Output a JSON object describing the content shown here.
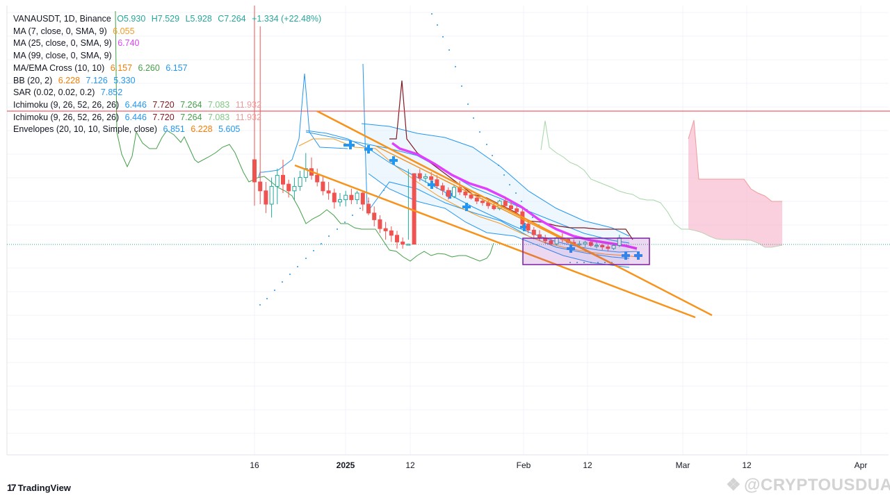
{
  "legend": {
    "symbol": "VANAUSDT, 1D, Binance",
    "open": "O5.930",
    "high": "H7.529",
    "low": "L5.928",
    "close": "C7.264",
    "change": "+1.334 (+22.48%)",
    "ma7": {
      "label": "MA (7, close, 0, SMA, 9)",
      "value": "6.055",
      "color": "#f59b23"
    },
    "ma25": {
      "label": "MA (25, close, 0, SMA, 9)",
      "value": "6.740",
      "color": "#e040fb"
    },
    "ma99": {
      "label": "MA (99, close, 0, SMA, 9)"
    },
    "cross": {
      "label": "MA/EMA Cross (10, 10)",
      "v1": "6.157",
      "v2": "6.260",
      "v3": "6.157"
    },
    "bb": {
      "label": "BB (20, 2)",
      "v1": "6.228",
      "v2": "7.126",
      "v3": "5.330"
    },
    "sar": {
      "label": "SAR (0.02, 0.02, 0.2)",
      "v1": "7.852"
    },
    "ichimoku1": {
      "label": "Ichimoku (9, 26, 52, 26, 26)",
      "v1": "6.446",
      "v2": "7.720",
      "v3": "7.264",
      "v4": "7.083",
      "v5": "11.932"
    },
    "ichimoku2": {
      "label": "Ichimoku (9, 26, 52, 26, 26)",
      "v1": "6.446",
      "v2": "7.720",
      "v3": "7.264",
      "v4": "7.083",
      "v5": "11.932"
    },
    "env": {
      "label": "Envelopes (20, 10, 10, Simple, close)",
      "v1": "6.851",
      "v2": "6.228",
      "v3": "5.605"
    }
  },
  "colors": {
    "up": "#26a69a",
    "down": "#ef5350",
    "ma7": "#f59b23",
    "ma25": "#e040fb",
    "blue": "#2196f3",
    "kijun": "#801922",
    "lagging": "#43a047",
    "trendline": "#f7931a",
    "price_line": "#f23645"
  },
  "xaxis": {
    "ticks": [
      "16",
      "2025",
      "12",
      "Feb",
      "12",
      "Mar",
      "12",
      "Apr"
    ]
  },
  "branding": {
    "logo": "TradingView",
    "watermark": "@CRYPTOUSDUA"
  },
  "chart_data": {
    "type": "candlestick",
    "symbol": "VANAUSDT",
    "interval": "1D",
    "exchange": "Binance",
    "last_bar": {
      "open": 5.93,
      "high": 7.529,
      "low": 5.928,
      "close": 7.264,
      "change": 1.334,
      "change_pct": 22.48
    },
    "x_tick_labels": [
      "16",
      "2025",
      "12",
      "Feb",
      "12",
      "Mar",
      "12",
      "Apr"
    ],
    "candles": [
      {
        "date": "2024-12-16",
        "o": 20.0,
        "h": 27.0,
        "l": 13.5,
        "c": 19.0
      },
      {
        "date": "2024-12-17",
        "o": 19.0,
        "h": 26.0,
        "l": 18.0,
        "c": 18.6
      },
      {
        "date": "2024-12-18",
        "o": 18.6,
        "h": 19.0,
        "l": 17.6,
        "c": 18.0
      },
      {
        "date": "2024-12-19",
        "o": 18.0,
        "h": 19.2,
        "l": 17.4,
        "c": 18.8
      },
      {
        "date": "2024-12-20",
        "o": 18.8,
        "h": 19.6,
        "l": 18.0,
        "c": 19.3
      },
      {
        "date": "2024-12-21",
        "o": 19.3,
        "h": 20.0,
        "l": 18.5,
        "c": 18.9
      },
      {
        "date": "2024-12-22",
        "o": 18.9,
        "h": 19.1,
        "l": 18.3,
        "c": 18.6
      },
      {
        "date": "2024-12-23",
        "o": 18.6,
        "h": 19.2,
        "l": 18.2,
        "c": 18.8
      },
      {
        "date": "2024-12-24",
        "o": 18.8,
        "h": 19.5,
        "l": 18.6,
        "c": 19.2
      },
      {
        "date": "2024-12-25",
        "o": 19.2,
        "h": 20.3,
        "l": 19.0,
        "c": 19.6
      },
      {
        "date": "2024-12-26",
        "o": 19.6,
        "h": 20.1,
        "l": 19.1,
        "c": 19.3
      },
      {
        "date": "2024-12-27",
        "o": 19.3,
        "h": 19.6,
        "l": 18.8,
        "c": 19.0
      },
      {
        "date": "2024-12-28",
        "o": 19.0,
        "h": 19.3,
        "l": 18.4,
        "c": 18.6
      },
      {
        "date": "2024-12-29",
        "o": 18.6,
        "h": 19.0,
        "l": 18.2,
        "c": 18.5
      },
      {
        "date": "2024-12-30",
        "o": 18.5,
        "h": 18.7,
        "l": 17.8,
        "c": 18.1
      },
      {
        "date": "2024-12-31",
        "o": 18.1,
        "h": 18.5,
        "l": 17.9,
        "c": 18.2
      },
      {
        "date": "2025-01-01",
        "o": 18.2,
        "h": 18.6,
        "l": 17.9,
        "c": 18.4
      },
      {
        "date": "2025-01-02",
        "o": 18.4,
        "h": 18.7,
        "l": 18.0,
        "c": 18.2
      },
      {
        "date": "2025-01-03",
        "o": 18.2,
        "h": 18.6,
        "l": 18.0,
        "c": 18.5
      },
      {
        "date": "2025-01-04",
        "o": 18.5,
        "h": 18.6,
        "l": 17.7,
        "c": 18.0
      },
      {
        "date": "2025-01-05",
        "o": 18.0,
        "h": 18.3,
        "l": 17.5,
        "c": 17.6
      },
      {
        "date": "2025-01-06",
        "o": 17.6,
        "h": 17.9,
        "l": 17.0,
        "c": 17.3
      },
      {
        "date": "2025-01-07",
        "o": 17.3,
        "h": 17.5,
        "l": 16.7,
        "c": 16.9
      },
      {
        "date": "2025-01-08",
        "o": 16.9,
        "h": 17.2,
        "l": 16.4,
        "c": 16.8
      },
      {
        "date": "2025-01-09",
        "o": 16.8,
        "h": 17.0,
        "l": 16.3,
        "c": 16.6
      },
      {
        "date": "2025-01-10",
        "o": 16.6,
        "h": 16.8,
        "l": 16.0,
        "c": 16.3
      },
      {
        "date": "2025-01-11",
        "o": 16.3,
        "h": 16.5,
        "l": 16.0,
        "c": 16.2
      },
      {
        "date": "2025-01-12",
        "o": 16.2,
        "h": 16.4,
        "l": 15.9,
        "c": 16.2
      },
      {
        "date": "2025-01-13",
        "o": 16.2,
        "h": 16.2,
        "l": 15.2,
        "c": 15.6
      },
      {
        "date": "2025-01-14",
        "o": 15.6,
        "h": 15.9,
        "l": 15.1,
        "c": 15.3
      },
      {
        "date": "2025-01-15",
        "o": 15.3,
        "h": 15.6,
        "l": 15.0,
        "c": 15.4
      },
      {
        "date": "2025-01-16",
        "o": 15.4,
        "h": 15.7,
        "l": 15.1,
        "c": 15.2
      },
      {
        "date": "2025-01-17",
        "o": 15.2,
        "h": 15.5,
        "l": 14.6,
        "c": 14.8
      },
      {
        "date": "2025-01-18",
        "o": 14.8,
        "h": 15.0,
        "l": 14.2,
        "c": 14.5
      },
      {
        "date": "2025-01-19",
        "o": 14.5,
        "h": 14.7,
        "l": 13.9,
        "c": 14.1
      },
      {
        "date": "2025-01-20",
        "o": 14.1,
        "h": 14.9,
        "l": 14.0,
        "c": 14.7
      },
      {
        "date": "2025-01-21",
        "o": 14.7,
        "h": 15.1,
        "l": 14.2,
        "c": 14.4
      },
      {
        "date": "2025-01-22",
        "o": 14.4,
        "h": 14.6,
        "l": 14.0,
        "c": 14.2
      },
      {
        "date": "2025-01-23",
        "o": 14.2,
        "h": 14.4,
        "l": 13.9,
        "c": 14.0
      },
      {
        "date": "2025-01-24",
        "o": 14.0,
        "h": 14.2,
        "l": 13.6,
        "c": 13.8
      },
      {
        "date": "2025-01-25",
        "o": 13.8,
        "h": 14.0,
        "l": 13.5,
        "c": 13.7
      },
      {
        "date": "2025-01-26",
        "o": 13.7,
        "h": 13.9,
        "l": 13.3,
        "c": 13.5
      },
      {
        "date": "2025-01-27",
        "o": 13.5,
        "h": 13.7,
        "l": 13.2,
        "c": 13.3
      },
      {
        "date": "2025-01-28",
        "o": 13.3,
        "h": 13.9,
        "l": 13.2,
        "c": 13.8
      },
      {
        "date": "2025-01-29",
        "o": 13.8,
        "h": 14.0,
        "l": 13.4,
        "c": 13.5
      },
      {
        "date": "2025-01-30",
        "o": 13.5,
        "h": 13.8,
        "l": 13.1,
        "c": 13.3
      },
      {
        "date": "2025-01-31",
        "o": 13.3,
        "h": 13.5,
        "l": 12.9,
        "c": 13.1
      },
      {
        "date": "2025-02-01",
        "o": 13.1,
        "h": 13.3,
        "l": 12.1,
        "c": 12.3
      },
      {
        "date": "2025-02-02",
        "o": 12.3,
        "h": 12.6,
        "l": 11.7,
        "c": 11.9
      },
      {
        "date": "2025-02-03",
        "o": 11.9,
        "h": 12.1,
        "l": 11.3,
        "c": 11.6
      },
      {
        "date": "2025-02-04",
        "o": 11.6,
        "h": 11.9,
        "l": 11.2,
        "c": 11.4
      },
      {
        "date": "2025-02-05",
        "o": 11.4,
        "h": 11.6,
        "l": 11.0,
        "c": 11.2
      },
      {
        "date": "2025-02-06",
        "o": 11.2,
        "h": 11.4,
        "l": 10.9,
        "c": 11.0
      },
      {
        "date": "2025-02-07",
        "o": 11.0,
        "h": 11.6,
        "l": 10.9,
        "c": 11.4
      },
      {
        "date": "2025-02-08",
        "o": 11.4,
        "h": 11.7,
        "l": 11.1,
        "c": 11.3
      },
      {
        "date": "2025-02-09",
        "o": 11.3,
        "h": 11.4,
        "l": 11.0,
        "c": 11.1
      },
      {
        "date": "2025-02-10",
        "o": 11.1,
        "h": 11.3,
        "l": 10.9,
        "c": 11.0
      },
      {
        "date": "2025-02-11",
        "o": 11.0,
        "h": 11.2,
        "l": 10.8,
        "c": 11.0
      },
      {
        "date": "2025-02-12",
        "o": 11.0,
        "h": 11.2,
        "l": 10.8,
        "c": 11.1
      },
      {
        "date": "2025-02-13",
        "o": 11.1,
        "h": 11.2,
        "l": 10.8,
        "c": 10.9
      },
      {
        "date": "2025-02-14",
        "o": 10.9,
        "h": 11.1,
        "l": 10.7,
        "c": 10.9
      },
      {
        "date": "2025-02-15",
        "o": 10.9,
        "h": 11.0,
        "l": 10.6,
        "c": 10.8
      },
      {
        "date": "2025-02-16",
        "o": 10.8,
        "h": 11.0,
        "l": 10.5,
        "c": 10.7
      },
      {
        "date": "2025-02-17",
        "o": 10.7,
        "h": 11.0,
        "l": 10.6,
        "c": 10.9
      },
      {
        "date": "2025-02-18",
        "o": 10.9,
        "h": 11.6,
        "l": 10.8,
        "c": 11.4
      }
    ],
    "trendlines": [
      {
        "name": "upper",
        "from": {
          "date": "2024-12-28",
          "price": 19.4
        },
        "to": {
          "date": "2025-03-05",
          "price": 9.5
        }
      },
      {
        "name": "lower",
        "from": {
          "date": "2024-12-21",
          "price": 17.3
        },
        "to": {
          "date": "2025-03-04",
          "price": 9.3
        }
      }
    ]
  }
}
